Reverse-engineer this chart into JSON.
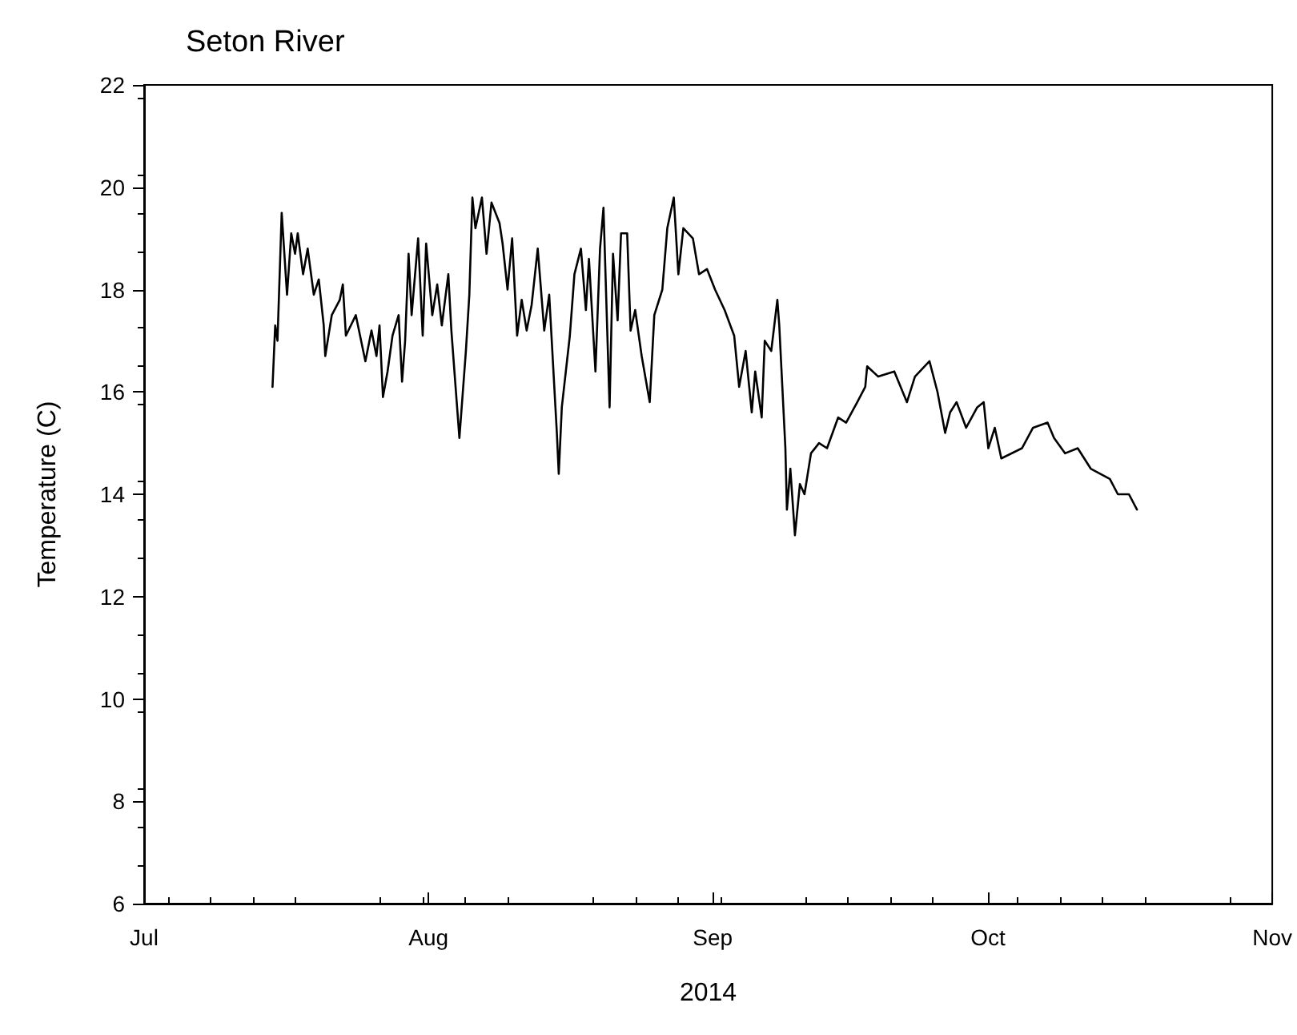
{
  "chart_data": {
    "type": "line",
    "title": "Seton River",
    "xlabel": "2014",
    "ylabel": "Temperature (C)",
    "xlim": [
      "2014-07-01",
      "2014-11-01"
    ],
    "xticks": [
      {
        "value": "2014-07-01",
        "label": "Jul"
      },
      {
        "value": "2014-08-01",
        "label": "Aug"
      },
      {
        "value": "2014-09-01",
        "label": "Sep"
      },
      {
        "value": "2014-10-01",
        "label": "Oct"
      },
      {
        "value": "2014-11-01",
        "label": "Nov"
      }
    ],
    "ylim": [
      6,
      22
    ],
    "yticks": [
      6,
      8,
      10,
      12,
      14,
      16,
      18,
      20,
      22
    ],
    "grid": false,
    "marker": "none",
    "line_style": "solid",
    "series": [
      {
        "color": "#000000",
        "x": [
          "2014-07-15T00:00",
          "2014-07-15T07:00",
          "2014-07-15T13:00",
          "2014-07-16T00:00",
          "2014-07-16T14:00",
          "2014-07-17T01:00",
          "2014-07-17T11:00",
          "2014-07-17T18:00",
          "2014-07-18T08:00",
          "2014-07-18T20:00",
          "2014-07-19T12:00",
          "2014-07-20T01:00",
          "2014-07-20T14:00",
          "2014-07-20T18:00",
          "2014-07-21T11:00",
          "2014-07-22T08:00",
          "2014-07-22T16:00",
          "2014-07-23T00:00",
          "2014-07-24T02:00",
          "2014-07-25T03:00",
          "2014-07-25T19:00",
          "2014-07-26T08:00",
          "2014-07-26T16:00",
          "2014-07-27T01:00",
          "2014-07-27T13:00",
          "2014-07-28T02:00",
          "2014-07-28T18:00",
          "2014-07-29T03:00",
          "2014-07-29T11:00",
          "2014-07-29T20:00",
          "2014-07-30T04:00",
          "2014-07-30T21:00",
          "2014-07-31T09:00",
          "2014-07-31T18:00",
          "2014-08-01T10:00",
          "2014-08-01T23:00",
          "2014-08-02T11:00",
          "2014-08-03T04:00",
          "2014-08-03T12:00",
          "2014-08-04T05:00",
          "2014-08-04T09:00",
          "2014-08-05T02:00",
          "2014-08-05T11:00",
          "2014-08-05T19:00",
          "2014-08-06T03:00",
          "2014-08-06T20:00",
          "2014-08-07T08:00",
          "2014-08-07T21:00",
          "2014-08-08T18:00",
          "2014-08-09T02:00",
          "2014-08-09T15:00",
          "2014-08-10T03:00",
          "2014-08-10T16:00",
          "2014-08-11T04:00",
          "2014-08-11T17:00",
          "2014-08-12T06:00",
          "2014-08-12T22:00",
          "2014-08-13T15:00",
          "2014-08-14T04:00",
          "2014-08-15T00:00",
          "2014-08-15T05:00",
          "2014-08-15T13:00",
          "2014-08-16T10:00",
          "2014-08-16T22:00",
          "2014-08-17T15:00",
          "2014-08-18T04:00",
          "2014-08-18T12:00",
          "2014-08-19T05:00",
          "2014-08-19T17:00",
          "2014-08-20T02:00",
          "2014-08-20T18:00",
          "2014-08-21T03:00",
          "2014-08-21T15:00",
          "2014-08-22T00:00",
          "2014-08-22T16:00",
          "2014-08-23T01:00",
          "2014-08-23T13:00",
          "2014-08-24T06:00",
          "2014-08-25T03:00",
          "2014-08-25T15:00",
          "2014-08-26T12:00",
          "2014-08-27T01:00",
          "2014-08-27T18:00",
          "2014-08-28T06:00",
          "2014-08-28T19:00",
          "2014-08-29T20:00",
          "2014-08-30T12:00",
          "2014-08-31T09:00",
          "2014-09-01T06:00",
          "2014-09-02T07:00",
          "2014-09-03T08:00",
          "2014-09-03T21:00",
          "2014-09-04T14:00",
          "2014-09-05T06:00",
          "2014-09-05T15:00",
          "2014-09-06T08:00",
          "2014-09-06T16:00",
          "2014-09-07T09:00",
          "2014-09-08T01:00",
          "2014-09-08T06:00",
          "2014-09-08T22:00",
          "2014-09-09T02:00",
          "2014-09-09T11:00",
          "2014-09-09T23:00",
          "2014-09-10T12:00",
          "2014-09-11T00:00",
          "2014-09-11T17:00",
          "2014-09-12T14:00",
          "2014-09-13T11:00",
          "2014-09-14T16:00",
          "2014-09-15T13:00",
          "2014-09-16T18:00",
          "2014-09-17T15:00",
          "2014-09-17T20:00",
          "2014-09-19T01:00",
          "2014-09-20T19:00",
          "2014-09-22T04:00",
          "2014-09-23T01:00",
          "2014-09-24T15:00",
          "2014-09-25T12:00",
          "2014-09-26T08:00",
          "2014-09-26T21:00",
          "2014-09-27T14:00",
          "2014-09-28T15:00",
          "2014-09-29T20:00",
          "2014-09-30T13:00",
          "2014-10-01T01:00",
          "2014-10-01T18:00",
          "2014-10-02T11:00",
          "2014-10-04T17:00",
          "2014-10-05T22:00",
          "2014-10-07T12:00",
          "2014-10-08T05:00",
          "2014-10-09T10:00",
          "2014-10-10T19:00",
          "2014-10-12T05:00",
          "2014-10-14T07:00",
          "2014-10-15T04:00",
          "2014-10-16T09:00",
          "2014-10-17T06:00"
        ],
        "values": [
          16.1,
          17.3,
          17.0,
          19.5,
          17.9,
          19.1,
          18.7,
          19.1,
          18.3,
          18.8,
          17.9,
          18.2,
          17.3,
          16.7,
          17.5,
          17.8,
          18.1,
          17.1,
          17.5,
          16.6,
          17.2,
          16.7,
          17.3,
          15.9,
          16.4,
          17.1,
          17.5,
          16.2,
          17.0,
          18.7,
          17.5,
          19.0,
          17.1,
          18.9,
          17.5,
          18.1,
          17.3,
          18.3,
          17.2,
          15.5,
          15.1,
          16.8,
          17.9,
          19.8,
          19.2,
          19.8,
          18.7,
          19.7,
          19.3,
          18.9,
          18.0,
          19.0,
          17.1,
          17.8,
          17.2,
          17.7,
          18.8,
          17.2,
          17.9,
          15.2,
          14.4,
          15.7,
          17.1,
          18.3,
          18.8,
          17.6,
          18.6,
          16.4,
          18.8,
          19.6,
          15.7,
          18.7,
          17.4,
          19.1,
          19.1,
          17.2,
          17.6,
          16.7,
          15.8,
          17.5,
          18.0,
          19.2,
          19.8,
          18.3,
          19.2,
          19.0,
          18.3,
          18.4,
          18.0,
          17.6,
          17.1,
          16.1,
          16.8,
          15.6,
          16.4,
          15.5,
          17.0,
          16.8,
          17.8,
          17.3,
          14.9,
          13.7,
          14.5,
          13.2,
          14.2,
          14.0,
          14.8,
          15.0,
          14.9,
          15.5,
          15.4,
          15.8,
          16.1,
          16.5,
          16.3,
          16.4,
          15.8,
          16.3,
          16.6,
          16.0,
          15.2,
          15.6,
          15.8,
          15.3,
          15.7,
          15.8,
          14.9,
          15.3,
          14.7,
          14.9,
          15.3,
          15.4,
          15.1,
          14.8,
          14.9,
          14.5,
          14.3,
          14.0,
          14.0,
          13.7
        ]
      }
    ]
  }
}
